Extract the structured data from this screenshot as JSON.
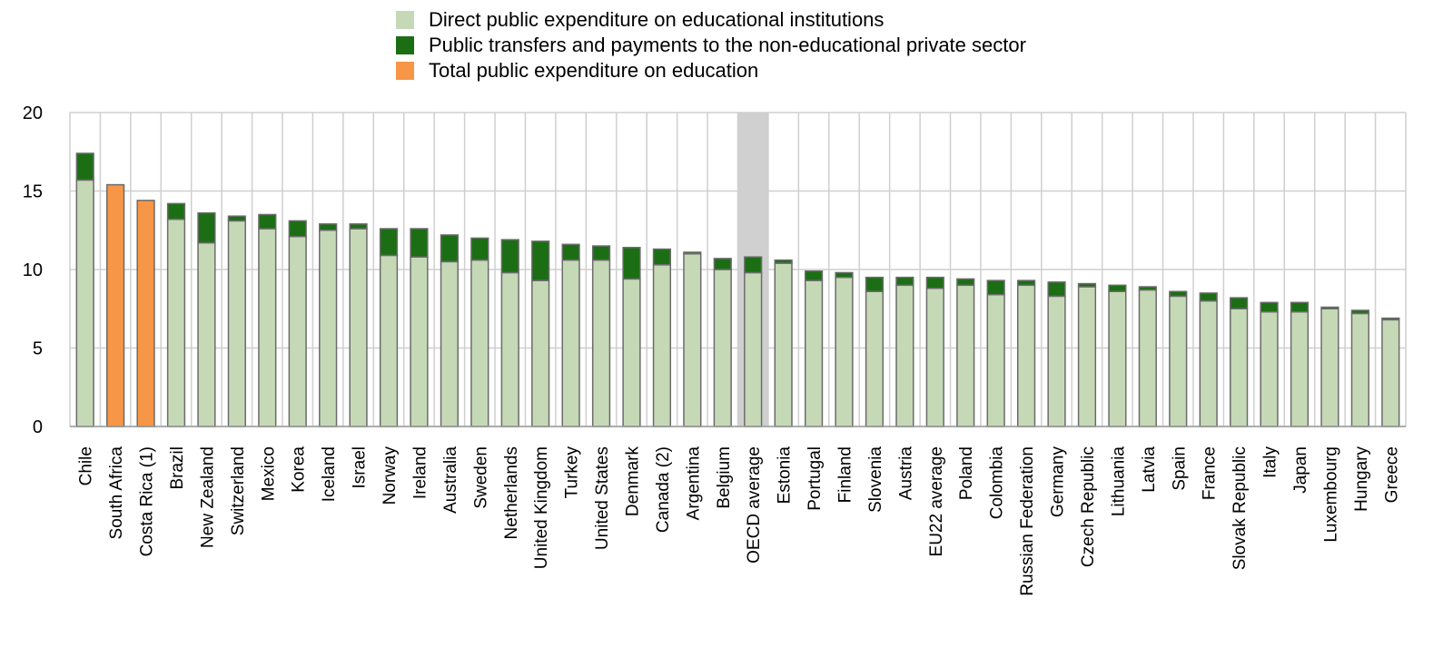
{
  "legend": [
    {
      "label": "Direct public expenditure on educational institutions",
      "color": "#c6d9b7"
    },
    {
      "label": "Public transfers and payments to the non-educational private sector",
      "color": "#1b6e14"
    },
    {
      "label": "Total public expenditure on education",
      "color": "#f79646"
    }
  ],
  "chart_data": {
    "type": "bar",
    "stacked": true,
    "ylim": [
      0,
      20
    ],
    "yticks": [
      0,
      5,
      10,
      15,
      20
    ],
    "grid": true,
    "legend_position": "top",
    "highlight_category": "OECD average",
    "categories": [
      "Chile",
      "South Africa",
      "Costa Rica (1)",
      "Brazil",
      "New Zealand",
      "Switzerland",
      "Mexico",
      "Korea",
      "Iceland",
      "Israel",
      "Norway",
      "Ireland",
      "Australia",
      "Sweden",
      "Netherlands",
      "United Kingdom",
      "Turkey",
      "United States",
      "Denmark",
      "Canada (2)",
      "Argentina",
      "Belgium",
      "OECD average",
      "Estonia",
      "Portugal",
      "Finland",
      "Slovenia",
      "Austria",
      "EU22 average",
      "Poland",
      "Colombia",
      "Russian Federation",
      "Germany",
      "Czech Republic",
      "Lithuania",
      "Latvia",
      "Spain",
      "France",
      "Slovak Republic",
      "Italy",
      "Japan",
      "Luxembourg",
      "Hungary",
      "Greece"
    ],
    "series": [
      {
        "name": "Direct public expenditure on educational institutions",
        "values": [
          15.7,
          null,
          null,
          13.2,
          11.7,
          13.1,
          12.6,
          12.1,
          12.5,
          12.6,
          10.9,
          10.8,
          10.5,
          10.6,
          9.8,
          9.3,
          10.6,
          10.6,
          9.4,
          10.3,
          11.0,
          10.0,
          9.8,
          10.4,
          9.3,
          9.5,
          8.6,
          9.0,
          8.8,
          9.0,
          8.4,
          9.0,
          8.3,
          8.9,
          8.6,
          8.7,
          8.3,
          8.0,
          7.5,
          7.3,
          7.3,
          7.5,
          7.2,
          6.8
        ]
      },
      {
        "name": "Public transfers and payments to the non-educational private sector",
        "values": [
          1.7,
          null,
          null,
          1.0,
          1.9,
          0.3,
          0.9,
          1.0,
          0.4,
          0.3,
          1.7,
          1.8,
          1.7,
          1.4,
          2.1,
          2.5,
          1.0,
          0.9,
          2.0,
          1.0,
          0.1,
          0.7,
          1.0,
          0.2,
          0.6,
          0.3,
          0.9,
          0.5,
          0.7,
          0.4,
          0.9,
          0.3,
          0.9,
          0.2,
          0.4,
          0.2,
          0.3,
          0.5,
          0.7,
          0.6,
          0.6,
          0.1,
          0.2,
          0.1
        ]
      },
      {
        "name": "Total public expenditure on education",
        "values": [
          null,
          15.4,
          14.4,
          null,
          null,
          null,
          null,
          null,
          null,
          null,
          null,
          null,
          null,
          null,
          null,
          null,
          null,
          null,
          null,
          null,
          null,
          null,
          null,
          null,
          null,
          null,
          null,
          null,
          null,
          null,
          null,
          null,
          null,
          null,
          null,
          null,
          null,
          null,
          null,
          null,
          null,
          null,
          null,
          null
        ]
      }
    ]
  }
}
